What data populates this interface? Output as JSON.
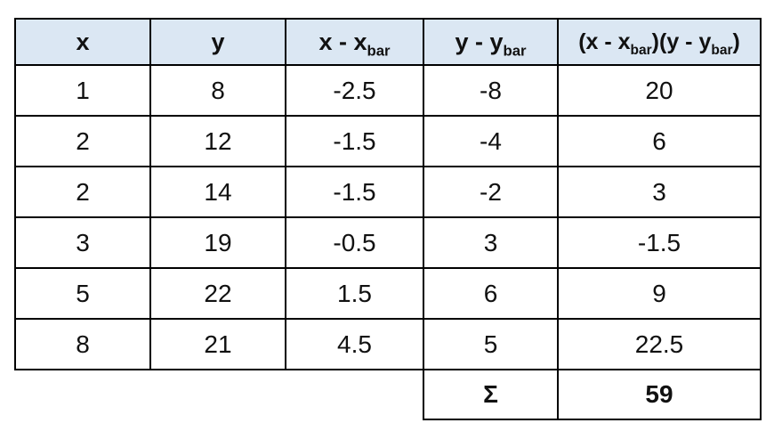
{
  "chart_data": {
    "type": "table",
    "title": "Covariance calculation table",
    "columns": [
      "x",
      "y",
      "x - x_bar",
      "y - y_bar",
      "(x - x_bar)(y - y_bar)"
    ],
    "rows": [
      [
        1,
        8,
        -2.5,
        -8,
        20
      ],
      [
        2,
        12,
        -1.5,
        -4,
        6
      ],
      [
        2,
        14,
        -1.5,
        -2,
        3
      ],
      [
        3,
        19,
        -0.5,
        3,
        -1.5
      ],
      [
        5,
        22,
        1.5,
        6,
        9
      ],
      [
        8,
        21,
        4.5,
        5,
        22.5
      ]
    ],
    "summary": {
      "label": "Σ",
      "column": "(x - x_bar)(y - y_bar)",
      "value": 59
    },
    "layout_hints": {
      "header_bg": "#dbe7f3",
      "border_color": "#000000",
      "grid": "on",
      "summary_spans_last_two_columns_only": true
    }
  },
  "table": {
    "headers": [
      {
        "parts": [
          {
            "t": "x"
          }
        ]
      },
      {
        "parts": [
          {
            "t": "y"
          }
        ]
      },
      {
        "parts": [
          {
            "t": "x - x"
          },
          {
            "t": "bar",
            "sub": true
          }
        ]
      },
      {
        "parts": [
          {
            "t": "y - y"
          },
          {
            "t": "bar",
            "sub": true
          }
        ]
      },
      {
        "parts": [
          {
            "t": "(x - x"
          },
          {
            "t": "bar",
            "sub": true
          },
          {
            "t": ")(y - y"
          },
          {
            "t": "bar",
            "sub": true
          },
          {
            "t": ")"
          }
        ]
      }
    ],
    "rows": [
      [
        "1",
        "8",
        "-2.5",
        "-8",
        "20"
      ],
      [
        "2",
        "12",
        "-1.5",
        "-4",
        "6"
      ],
      [
        "2",
        "14",
        "-1.5",
        "-2",
        "3"
      ],
      [
        "3",
        "19",
        "-0.5",
        "3",
        "-1.5"
      ],
      [
        "5",
        "22",
        "1.5",
        "6",
        "9"
      ],
      [
        "8",
        "21",
        "4.5",
        "5",
        "22.5"
      ]
    ],
    "summary": {
      "sigma_label": "Σ",
      "total": "59"
    }
  },
  "colors": {
    "header_bg": "#dbe7f3",
    "border": "#000000",
    "text": "#111111",
    "page_bg": "#ffffff"
  }
}
